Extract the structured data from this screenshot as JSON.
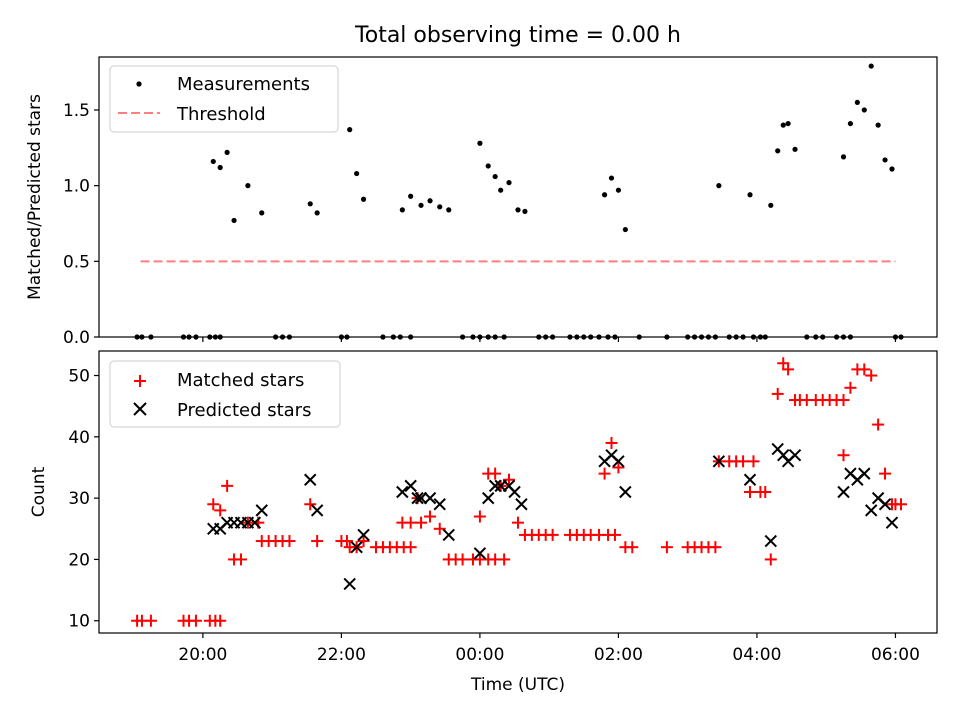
{
  "chart_data": [
    {
      "type": "scatter",
      "title": "Total observing time = 0.00 h",
      "xlabel": "",
      "ylabel": "Matched/Predicted stars",
      "ylim": [
        0,
        1.85
      ],
      "xlim": [
        18.5,
        30.6
      ],
      "yticks": [
        "0.0",
        "0.5",
        "1.0",
        "1.5"
      ],
      "grid": false,
      "legend_placement": "upper-left",
      "series": [
        {
          "name": "Measurements",
          "marker": "dot",
          "color": "#000000",
          "points": [
            [
              19.05,
              0
            ],
            [
              19.12,
              0
            ],
            [
              19.25,
              0
            ],
            [
              19.72,
              0
            ],
            [
              19.8,
              0
            ],
            [
              19.9,
              0
            ],
            [
              20.1,
              0
            ],
            [
              20.18,
              0
            ],
            [
              20.25,
              0
            ],
            [
              20.15,
              1.16
            ],
            [
              20.25,
              1.12
            ],
            [
              20.35,
              1.22
            ],
            [
              20.45,
              0.77
            ],
            [
              20.65,
              1.0
            ],
            [
              20.85,
              0.82
            ],
            [
              21.05,
              0
            ],
            [
              21.15,
              0
            ],
            [
              21.25,
              0
            ],
            [
              21.55,
              0.88
            ],
            [
              21.65,
              0.82
            ],
            [
              22.0,
              0
            ],
            [
              22.08,
              0
            ],
            [
              22.12,
              1.37
            ],
            [
              22.22,
              1.08
            ],
            [
              22.32,
              0.91
            ],
            [
              22.6,
              0
            ],
            [
              22.75,
              0
            ],
            [
              22.85,
              0
            ],
            [
              23.0,
              0
            ],
            [
              22.88,
              0.84
            ],
            [
              23.0,
              0.93
            ],
            [
              23.15,
              0.87
            ],
            [
              23.28,
              0.9
            ],
            [
              23.42,
              0.86
            ],
            [
              23.55,
              0.84
            ],
            [
              23.75,
              0
            ],
            [
              23.9,
              0
            ],
            [
              24.0,
              0
            ],
            [
              24.12,
              0
            ],
            [
              24.22,
              0
            ],
            [
              24.35,
              0
            ],
            [
              24.0,
              1.28
            ],
            [
              24.12,
              1.13
            ],
            [
              24.22,
              1.06
            ],
            [
              24.3,
              0.97
            ],
            [
              24.42,
              1.02
            ],
            [
              24.55,
              0.84
            ],
            [
              24.65,
              0.83
            ],
            [
              24.85,
              0
            ],
            [
              24.95,
              0
            ],
            [
              25.05,
              0
            ],
            [
              25.3,
              0
            ],
            [
              25.4,
              0
            ],
            [
              25.5,
              0
            ],
            [
              25.6,
              0
            ],
            [
              25.72,
              0
            ],
            [
              25.85,
              0
            ],
            [
              25.95,
              0
            ],
            [
              25.8,
              0.94
            ],
            [
              25.9,
              1.05
            ],
            [
              26.0,
              0.97
            ],
            [
              26.1,
              0.71
            ],
            [
              26.3,
              0
            ],
            [
              26.7,
              0
            ],
            [
              27.0,
              0
            ],
            [
              27.1,
              0
            ],
            [
              27.2,
              0
            ],
            [
              27.3,
              0
            ],
            [
              27.4,
              0
            ],
            [
              27.45,
              1.0
            ],
            [
              27.6,
              0
            ],
            [
              27.7,
              0
            ],
            [
              27.8,
              0
            ],
            [
              27.95,
              0
            ],
            [
              28.05,
              0
            ],
            [
              28.12,
              0
            ],
            [
              27.9,
              0.94
            ],
            [
              28.2,
              0.87
            ],
            [
              28.3,
              1.23
            ],
            [
              28.38,
              1.4
            ],
            [
              28.45,
              1.41
            ],
            [
              28.55,
              1.24
            ],
            [
              28.72,
              0
            ],
            [
              28.85,
              0
            ],
            [
              28.95,
              0
            ],
            [
              29.15,
              0
            ],
            [
              29.25,
              0
            ],
            [
              29.35,
              0
            ],
            [
              29.25,
              1.19
            ],
            [
              29.35,
              1.41
            ],
            [
              29.45,
              1.55
            ],
            [
              29.55,
              1.5
            ],
            [
              29.65,
              1.79
            ],
            [
              29.75,
              1.4
            ],
            [
              29.85,
              1.17
            ],
            [
              29.95,
              1.11
            ],
            [
              30.0,
              0
            ],
            [
              30.08,
              0
            ]
          ]
        },
        {
          "name": "Threshold",
          "marker": "dashed-line",
          "color": "#ff7f7f",
          "x": [
            19.1,
            30.0
          ],
          "y": [
            0.5,
            0.5
          ]
        }
      ]
    },
    {
      "type": "scatter",
      "title": "",
      "xlabel": "Time (UTC)",
      "ylabel": "Count",
      "ylim": [
        8,
        54
      ],
      "xlim": [
        18.5,
        30.6
      ],
      "yticks": [
        "10",
        "20",
        "30",
        "40",
        "50"
      ],
      "xticks": [
        {
          "value": 20,
          "label": "20:00"
        },
        {
          "value": 22,
          "label": "22:00"
        },
        {
          "value": 24,
          "label": "00:00"
        },
        {
          "value": 26,
          "label": "02:00"
        },
        {
          "value": 28,
          "label": "04:00"
        },
        {
          "value": 30,
          "label": "06:00"
        }
      ],
      "grid": false,
      "legend_placement": "upper-left",
      "series": [
        {
          "name": "Matched stars",
          "marker": "plus",
          "color": "#ff0000",
          "points": [
            [
              19.05,
              10
            ],
            [
              19.12,
              10
            ],
            [
              19.25,
              10
            ],
            [
              19.72,
              10
            ],
            [
              19.8,
              10
            ],
            [
              19.9,
              10
            ],
            [
              20.1,
              10
            ],
            [
              20.18,
              10
            ],
            [
              20.25,
              10
            ],
            [
              20.15,
              29
            ],
            [
              20.25,
              28
            ],
            [
              20.35,
              32
            ],
            [
              20.45,
              20
            ],
            [
              20.55,
              20
            ],
            [
              20.65,
              26
            ],
            [
              20.8,
              26
            ],
            [
              20.85,
              23
            ],
            [
              20.95,
              23
            ],
            [
              21.05,
              23
            ],
            [
              21.15,
              23
            ],
            [
              21.25,
              23
            ],
            [
              21.55,
              29
            ],
            [
              21.65,
              23
            ],
            [
              22.0,
              23
            ],
            [
              22.08,
              23
            ],
            [
              22.12,
              22
            ],
            [
              22.22,
              22
            ],
            [
              22.32,
              23
            ],
            [
              22.5,
              22
            ],
            [
              22.6,
              22
            ],
            [
              22.7,
              22
            ],
            [
              22.8,
              22
            ],
            [
              22.9,
              22
            ],
            [
              23.0,
              22
            ],
            [
              22.88,
              26
            ],
            [
              23.0,
              26
            ],
            [
              23.1,
              30
            ],
            [
              23.15,
              26
            ],
            [
              23.28,
              27
            ],
            [
              23.42,
              25
            ],
            [
              23.55,
              20
            ],
            [
              23.65,
              20
            ],
            [
              23.75,
              20
            ],
            [
              23.9,
              20
            ],
            [
              24.0,
              20
            ],
            [
              24.12,
              20
            ],
            [
              24.22,
              20
            ],
            [
              24.35,
              20
            ],
            [
              24.0,
              27
            ],
            [
              24.12,
              34
            ],
            [
              24.22,
              34
            ],
            [
              24.3,
              32
            ],
            [
              24.42,
              33
            ],
            [
              24.55,
              26
            ],
            [
              24.65,
              24
            ],
            [
              24.75,
              24
            ],
            [
              24.85,
              24
            ],
            [
              24.95,
              24
            ],
            [
              25.05,
              24
            ],
            [
              25.3,
              24
            ],
            [
              25.4,
              24
            ],
            [
              25.5,
              24
            ],
            [
              25.6,
              24
            ],
            [
              25.72,
              24
            ],
            [
              25.85,
              24
            ],
            [
              25.95,
              24
            ],
            [
              25.8,
              34
            ],
            [
              25.9,
              39
            ],
            [
              26.0,
              35
            ],
            [
              26.1,
              22
            ],
            [
              26.2,
              22
            ],
            [
              26.7,
              22
            ],
            [
              27.0,
              22
            ],
            [
              27.1,
              22
            ],
            [
              27.2,
              22
            ],
            [
              27.3,
              22
            ],
            [
              27.4,
              22
            ],
            [
              27.45,
              36
            ],
            [
              27.6,
              36
            ],
            [
              27.7,
              36
            ],
            [
              27.8,
              36
            ],
            [
              27.95,
              36
            ],
            [
              28.05,
              31
            ],
            [
              28.12,
              31
            ],
            [
              27.9,
              31
            ],
            [
              28.2,
              20
            ],
            [
              28.3,
              47
            ],
            [
              28.38,
              52
            ],
            [
              28.45,
              51
            ],
            [
              28.55,
              46
            ],
            [
              28.62,
              46
            ],
            [
              28.72,
              46
            ],
            [
              28.85,
              46
            ],
            [
              28.95,
              46
            ],
            [
              29.05,
              46
            ],
            [
              29.15,
              46
            ],
            [
              29.25,
              46
            ],
            [
              29.25,
              37
            ],
            [
              29.35,
              48
            ],
            [
              29.45,
              51
            ],
            [
              29.55,
              51
            ],
            [
              29.65,
              50
            ],
            [
              29.75,
              42
            ],
            [
              29.85,
              34
            ],
            [
              29.95,
              29
            ],
            [
              30.0,
              29
            ],
            [
              30.08,
              29
            ]
          ]
        },
        {
          "name": "Predicted stars",
          "marker": "x",
          "color": "#000000",
          "points": [
            [
              20.15,
              25
            ],
            [
              20.25,
              25
            ],
            [
              20.35,
              26
            ],
            [
              20.45,
              26
            ],
            [
              20.55,
              26
            ],
            [
              20.65,
              26
            ],
            [
              20.75,
              26
            ],
            [
              20.85,
              28
            ],
            [
              21.55,
              33
            ],
            [
              21.65,
              28
            ],
            [
              22.12,
              16
            ],
            [
              22.22,
              22
            ],
            [
              22.32,
              24
            ],
            [
              22.88,
              31
            ],
            [
              23.0,
              32
            ],
            [
              23.1,
              30
            ],
            [
              23.15,
              30
            ],
            [
              23.28,
              30
            ],
            [
              23.42,
              29
            ],
            [
              23.55,
              24
            ],
            [
              24.0,
              21
            ],
            [
              24.12,
              30
            ],
            [
              24.22,
              32
            ],
            [
              24.3,
              32
            ],
            [
              24.42,
              32
            ],
            [
              24.5,
              31
            ],
            [
              24.6,
              29
            ],
            [
              25.8,
              36
            ],
            [
              25.9,
              37
            ],
            [
              26.0,
              36
            ],
            [
              26.1,
              31
            ],
            [
              27.45,
              36
            ],
            [
              27.9,
              33
            ],
            [
              28.2,
              23
            ],
            [
              28.3,
              38
            ],
            [
              28.38,
              37
            ],
            [
              28.45,
              36
            ],
            [
              28.55,
              37
            ],
            [
              29.25,
              31
            ],
            [
              29.35,
              34
            ],
            [
              29.45,
              33
            ],
            [
              29.55,
              34
            ],
            [
              29.65,
              28
            ],
            [
              29.75,
              30
            ],
            [
              29.85,
              29
            ],
            [
              29.95,
              26
            ]
          ]
        }
      ]
    }
  ]
}
